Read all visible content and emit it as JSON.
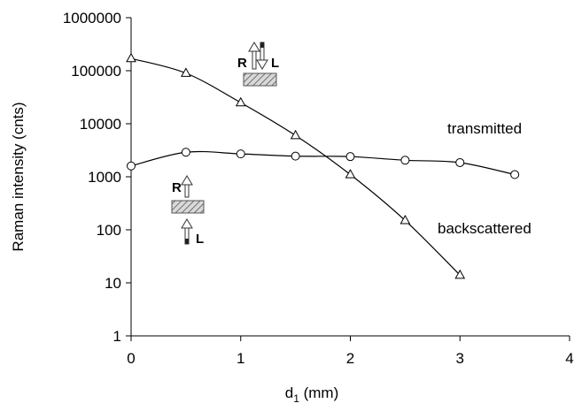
{
  "chart_data": {
    "type": "scatter",
    "xlabel_main": "d",
    "xlabel_sub": "1",
    "xlabel_unit": " (mm)",
    "ylabel": "Raman intensity (cnts)",
    "xlim": [
      0,
      4
    ],
    "ylim": [
      1,
      1000000
    ],
    "yscale": "log",
    "grid": false,
    "x_ticks": [
      0,
      1,
      2,
      3,
      4
    ],
    "x_tick_labels": [
      "0",
      "1",
      "2",
      "3",
      "4"
    ],
    "y_ticks": [
      1,
      10,
      100,
      1000,
      10000,
      100000,
      1000000
    ],
    "y_tick_labels": [
      "1",
      "10",
      "100",
      "1000",
      "10000",
      "100000",
      "1000000"
    ],
    "series": [
      {
        "name": "transmitted",
        "marker": "circle",
        "x": [
          0,
          0.5,
          1,
          1.5,
          2,
          2.5,
          3,
          3.5
        ],
        "y": [
          1600,
          2900,
          2700,
          2450,
          2400,
          2050,
          1850,
          1100
        ]
      },
      {
        "name": "backscattered",
        "marker": "triangle",
        "x": [
          0,
          0.5,
          1,
          1.5,
          2,
          2.5,
          3
        ],
        "y": [
          170000,
          90000,
          25000,
          6000,
          1100,
          150,
          14
        ]
      }
    ],
    "inset_labels": {
      "top": {
        "R": "R",
        "L": "L"
      },
      "bottom": {
        "R": "R",
        "L": "L"
      }
    }
  }
}
